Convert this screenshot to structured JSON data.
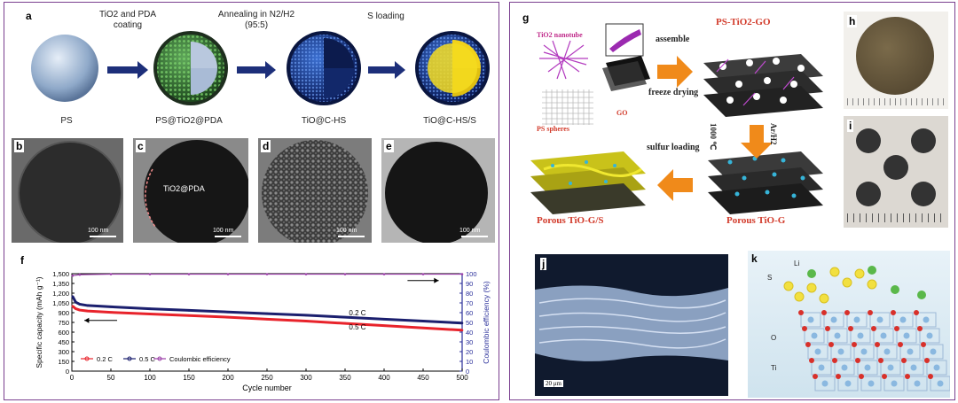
{
  "left": {
    "a": {
      "label": "a",
      "steps": [
        {
          "caption": "PS"
        },
        {
          "caption": "PS@TiO2@PDA"
        },
        {
          "caption": "TiO@C-HS"
        },
        {
          "caption": "TiO@C-HS/S"
        }
      ],
      "arrows": [
        "TiO2 and PDA coating",
        "Annealing in N2/H2 (95:5)",
        "S loading"
      ]
    },
    "tem": [
      {
        "label": "b",
        "scale": "100 nm"
      },
      {
        "label": "c",
        "scale": "100 nm",
        "annotation": "TiO2@PDA"
      },
      {
        "label": "d",
        "scale": "100 nm"
      },
      {
        "label": "e",
        "scale": "100 nm"
      }
    ],
    "f": {
      "label": "f"
    }
  },
  "right": {
    "g": {
      "label": "g",
      "tio2_nanotube": "TiO2 nanotube",
      "ps_spheres": "PS spheres",
      "go": "GO",
      "assemble": "assemble",
      "freeze_drying": "freeze drying",
      "ps_tio2_go": "PS-TiO2-GO",
      "anneal_temp": "1000 ℃",
      "anneal_gas": "Ar/H2",
      "sulfur_loading": "sulfur loading",
      "porous_tio_g": "Porous TiO-G",
      "porous_tio_gs": "Porous TiO-G/S"
    },
    "h": {
      "label": "h"
    },
    "i": {
      "label": "i"
    },
    "j": {
      "label": "j",
      "scale": "20 μm"
    },
    "k": {
      "label": "k",
      "atoms": [
        "Li",
        "S",
        "O",
        "Ti"
      ]
    }
  },
  "chart_data": {
    "type": "line",
    "xlabel": "Cycle number",
    "ylabel": "Specific capacity (mAh g⁻¹)",
    "y2label": "Coulombic efficiency (%)",
    "xlim": [
      0,
      500
    ],
    "ylim": [
      0,
      1500
    ],
    "y2lim": [
      0,
      100
    ],
    "xticks": [
      0,
      50,
      100,
      150,
      200,
      250,
      300,
      350,
      400,
      450,
      500
    ],
    "yticks": [
      "0",
      "150",
      "300",
      "450",
      "600",
      "750",
      "900",
      "1,050",
      "1,200",
      "1,350",
      "1,500"
    ],
    "y2ticks": [
      0,
      10,
      20,
      30,
      40,
      50,
      60,
      70,
      80,
      90,
      100
    ],
    "legend": [
      "0.2 C",
      "0.5 C",
      "Coulombic efficiency"
    ],
    "annotations": [
      "0.2 C",
      "0.5 C"
    ],
    "series": [
      {
        "name": "0.2 C",
        "color": "#1b1f6e",
        "x": [
          1,
          5,
          10,
          20,
          50,
          100,
          150,
          200,
          250,
          300,
          350,
          400,
          450,
          500
        ],
        "y": [
          1150,
          1060,
          1030,
          1010,
          990,
          960,
          935,
          910,
          885,
          860,
          830,
          800,
          770,
          740
        ]
      },
      {
        "name": "0.5 C",
        "color": "#e8232b",
        "x": [
          1,
          5,
          10,
          20,
          50,
          100,
          150,
          200,
          250,
          300,
          350,
          400,
          450,
          500
        ],
        "y": [
          1000,
          960,
          940,
          925,
          905,
          880,
          855,
          830,
          800,
          770,
          735,
          700,
          665,
          630
        ]
      },
      {
        "name": "Coulombic efficiency",
        "color": "#9b3fa8",
        "axis": "right",
        "x": [
          1,
          10,
          50,
          100,
          150,
          200,
          250,
          300,
          350,
          400,
          450,
          500
        ],
        "y": [
          98,
          99,
          99.5,
          99.5,
          99.5,
          99.5,
          99.5,
          99.5,
          99.5,
          99.5,
          99.5,
          99.5
        ]
      }
    ]
  }
}
